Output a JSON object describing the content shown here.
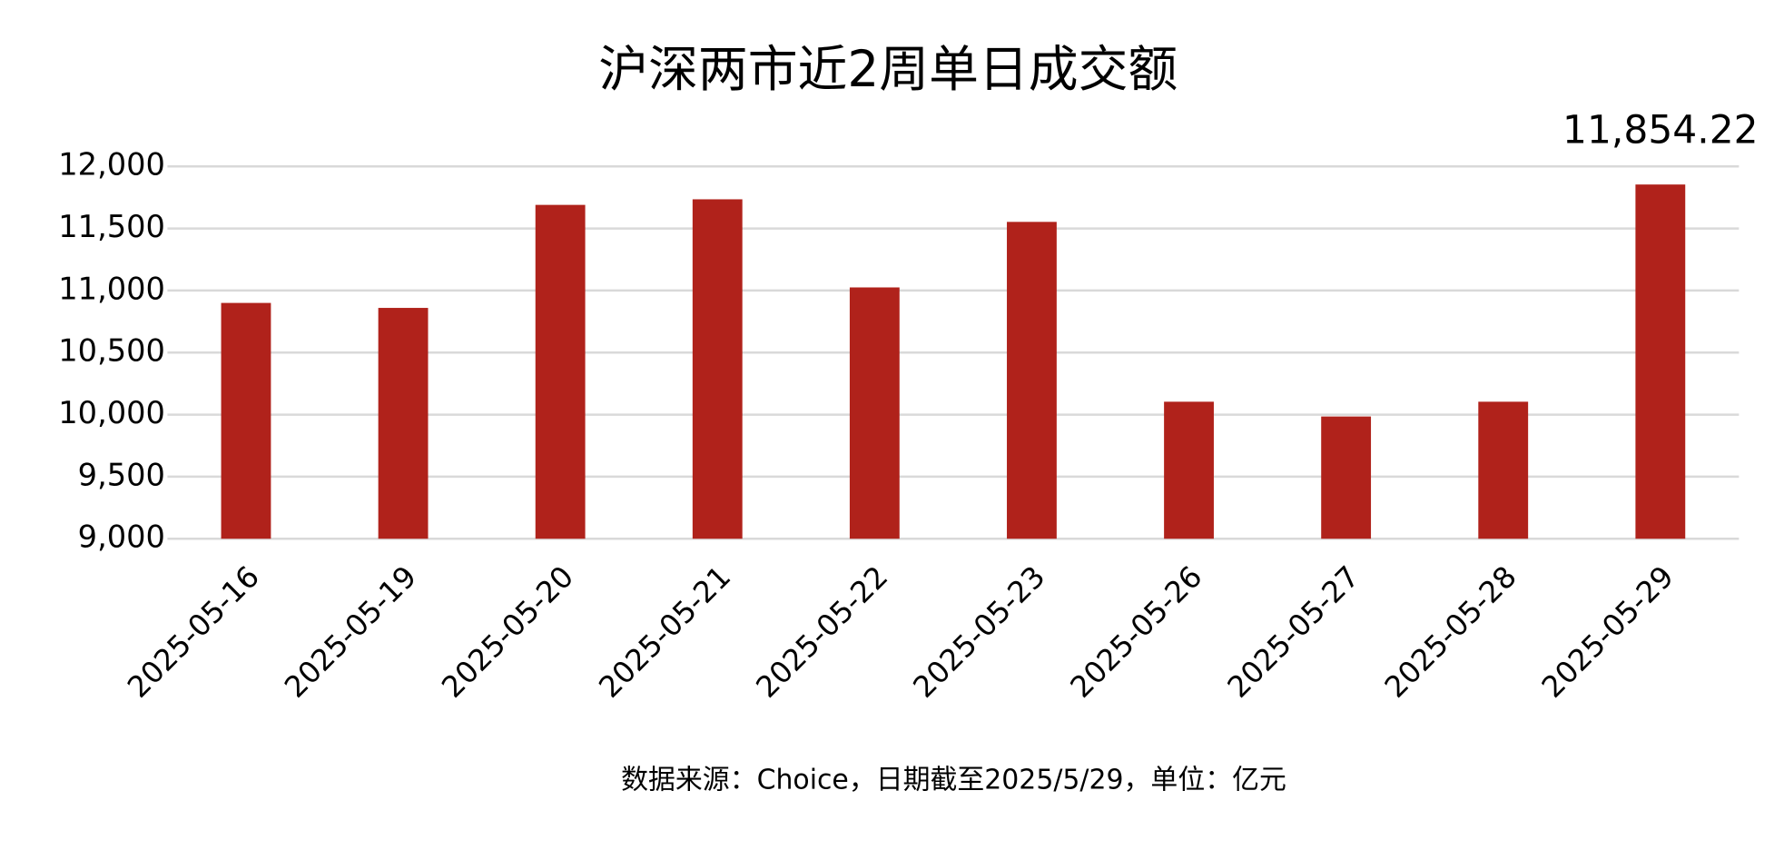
{
  "chart_data": {
    "type": "bar",
    "title": "沪深两市近2周单日成交额",
    "footnote": "数据来源：Choice，日期截至2025/5/29，单位：亿元",
    "categories": [
      "2025-05-16",
      "2025-05-19",
      "2025-05-20",
      "2025-05-21",
      "2025-05-22",
      "2025-05-23",
      "2025-05-26",
      "2025-05-27",
      "2025-05-28",
      "2025-05-29"
    ],
    "values": [
      10900,
      10860,
      11690,
      11735,
      11025,
      11553,
      10104,
      9985,
      10104,
      11854.22
    ],
    "value_labels": [
      null,
      null,
      null,
      null,
      null,
      null,
      null,
      null,
      null,
      "11,854.22"
    ],
    "color": "#b0221b",
    "ylim": [
      9000,
      12000
    ],
    "yticks": [
      {
        "value": 9000,
        "label": "9,000"
      },
      {
        "value": 9500,
        "label": "9,500"
      },
      {
        "value": 10000,
        "label": "10,000"
      },
      {
        "value": 10500,
        "label": "10,500"
      },
      {
        "value": 11000,
        "label": "11,000"
      },
      {
        "value": 11500,
        "label": "11,500"
      },
      {
        "value": 12000,
        "label": "12,000"
      }
    ],
    "grid": true
  }
}
